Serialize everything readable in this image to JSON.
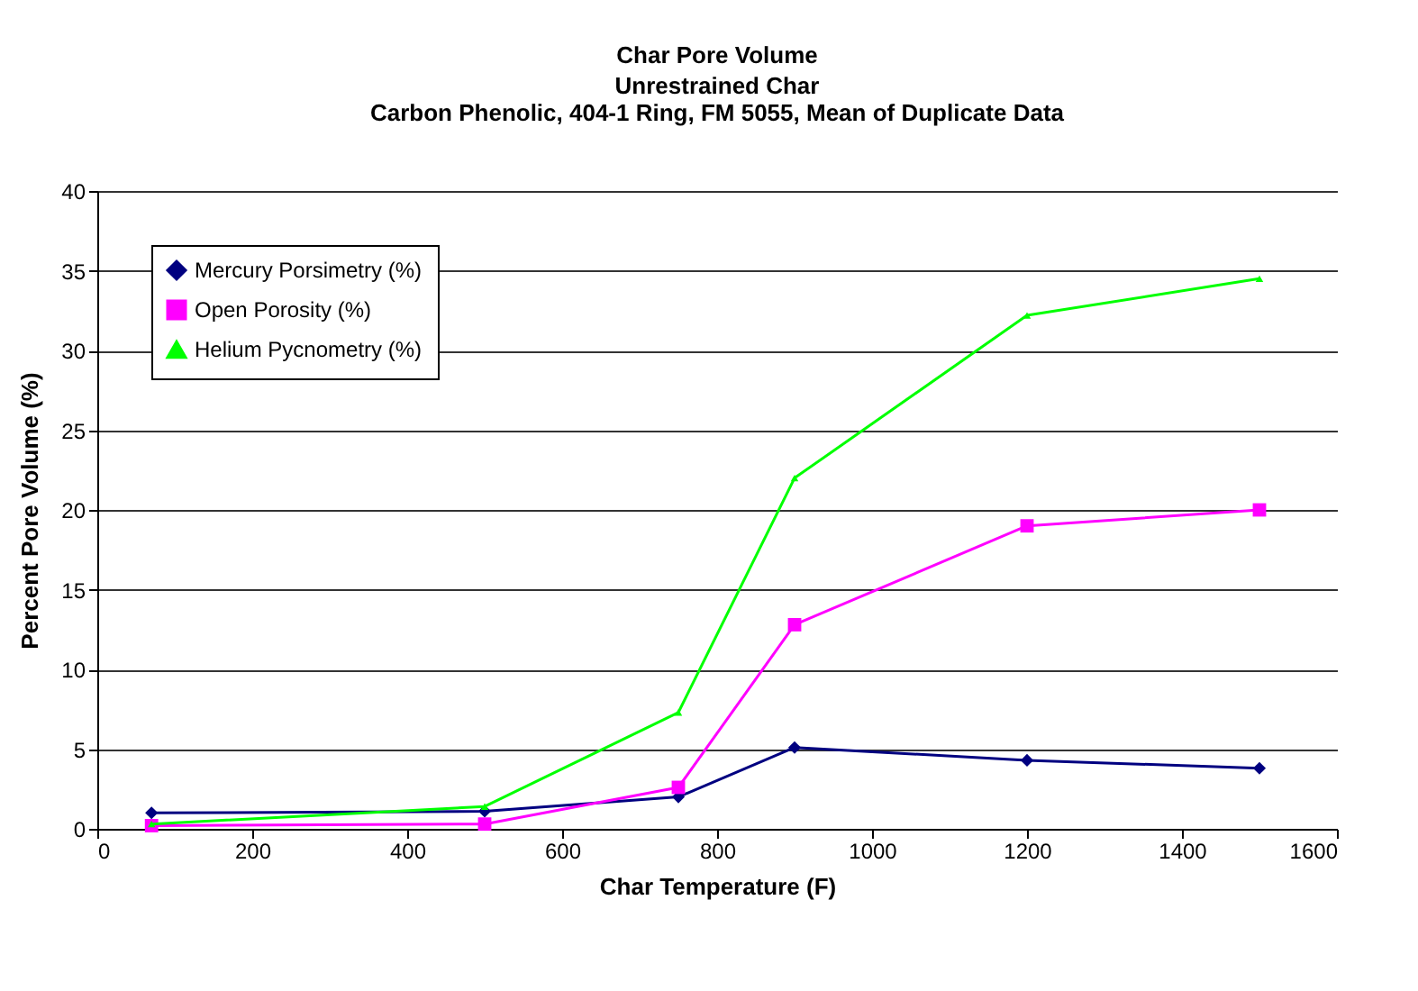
{
  "chart_data": {
    "type": "line",
    "title": "Char Pore Volume",
    "subtitle": "Unrestrained Char\nCarbon Phenolic, 404-1 Ring, FM 5055, Mean of Duplicate Data",
    "xlabel": "Char Temperature (F)",
    "ylabel": "Percent Pore Volume (%)",
    "x": [
      70,
      500,
      750,
      900,
      1200,
      1500
    ],
    "series": [
      {
        "name": "Mercury Porsimetry (%)",
        "color": "#000080",
        "marker": "diamond",
        "values": [
          1.0,
          1.1,
          2.0,
          5.1,
          4.3,
          3.8
        ]
      },
      {
        "name": "Open Porosity (%)",
        "color": "#ff00ff",
        "marker": "square",
        "values": [
          0.2,
          0.3,
          2.6,
          12.8,
          19.0,
          20.0
        ]
      },
      {
        "name": "Helium Pycnometry (%)",
        "color": "#00ff00",
        "marker": "triangle",
        "values": [
          0.3,
          1.4,
          7.3,
          22.0,
          32.2,
          34.5
        ]
      }
    ],
    "xlim": [
      0,
      1600
    ],
    "xticks": [
      0,
      200,
      400,
      600,
      800,
      1000,
      1200,
      1400,
      1600
    ],
    "ylim": [
      0,
      40
    ],
    "yticks": [
      0,
      5,
      10,
      15,
      20,
      25,
      30,
      35,
      40
    ],
    "grid": "y",
    "legend": "top left"
  }
}
